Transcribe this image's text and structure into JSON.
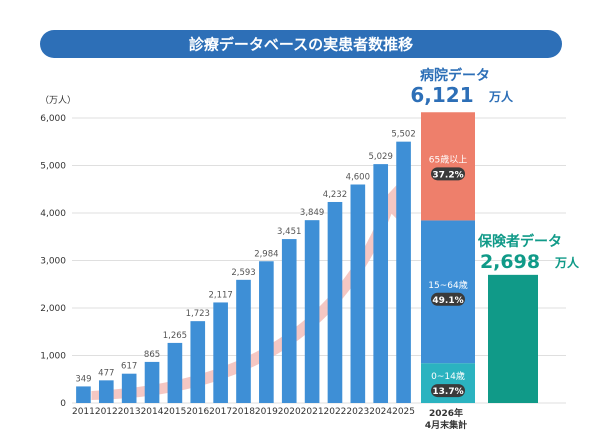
{
  "header": {
    "title": "診療データベースの実患者数推移"
  },
  "axis": {
    "y_unit": "（万人）"
  },
  "chart_data": [
    {
      "type": "bar",
      "title": "",
      "ylabel": "（万人）",
      "ylim": [
        0,
        6000
      ],
      "y_ticks": [
        "0",
        "1,000",
        "2,000",
        "3,000",
        "4,000",
        "5,000",
        "6,000"
      ],
      "y_tick_values": [
        0,
        1000,
        2000,
        3000,
        4000,
        5000,
        6000
      ],
      "categories": [
        "2011",
        "2012",
        "2013",
        "2014",
        "2015",
        "2016",
        "2017",
        "2018",
        "2019",
        "2020",
        "2021",
        "2022",
        "2023",
        "2024",
        "2025"
      ],
      "values": [
        349,
        477,
        617,
        865,
        1265,
        1723,
        2117,
        2593,
        2984,
        3451,
        3849,
        4232,
        4600,
        5029,
        5502
      ],
      "value_labels": [
        "349",
        "477",
        "617",
        "865",
        "1,265",
        "1,723",
        "2,117",
        "2,593",
        "2,984",
        "3,451",
        "3,849",
        "4,232",
        "4,600",
        "5,029",
        "5,502"
      ],
      "colors": {
        "bar": "#3e8fd6",
        "arrow": "#f4c4c0"
      }
    },
    {
      "type": "bar",
      "title": "病院データ",
      "total_label": "6,121",
      "unit": "万人",
      "total": 6121,
      "category_label_line1": "2026年",
      "category_label_line2": "4月末集計",
      "segments": [
        {
          "label": "0~14",
          "label_suffix": "歳",
          "percent": "13.7%",
          "share": 13.7,
          "color": "#2bb3c0"
        },
        {
          "label": "15~64",
          "label_suffix": "歳",
          "percent": "49.1%",
          "share": 49.1,
          "color": "#3e8fd6"
        },
        {
          "label": "65",
          "label_suffix": "歳以上",
          "percent": "37.2%",
          "share": 37.2,
          "color": "#ee7f6b"
        }
      ]
    },
    {
      "type": "bar",
      "title": "保険者データ",
      "total_label": "2,698",
      "unit": "万人",
      "total": 2698,
      "color": "#109a88"
    }
  ]
}
